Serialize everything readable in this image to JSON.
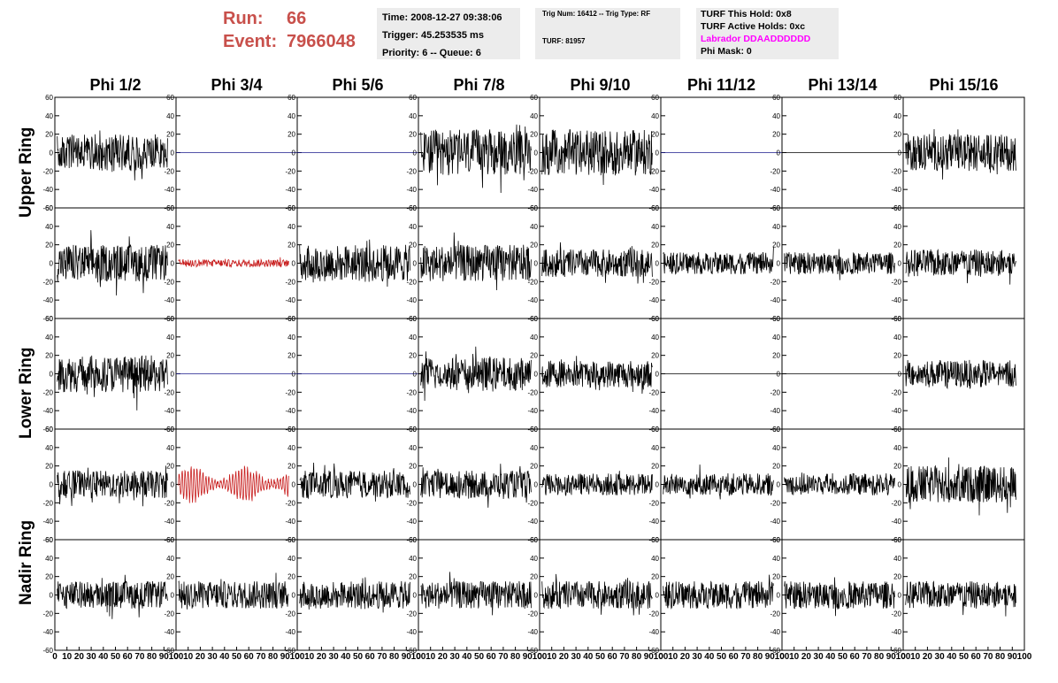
{
  "header": {
    "run_label": "Run:",
    "run_value": "66",
    "event_label": "Event:",
    "event_value": "7966048"
  },
  "info_box_1": {
    "time": "Time: 2008-12-27 09:38:06",
    "trigger": "Trigger: 45.253535 ms",
    "priority": "Priority: 6 -- Queue: 6"
  },
  "info_box_2": {
    "trig": "Trig Num: 16412 -- Trig Type: RF",
    "turf": "TURF: 81957"
  },
  "info_box_3": {
    "this_hold": "TURF This Hold: 0x8",
    "active_holds": "TURF Active Holds: 0xc",
    "labrador": "Labrador DDAADDDDDD",
    "phi_mask": "Phi Mask: 0"
  },
  "colors": {
    "run_text": "#c8504b",
    "labrador_text": "#ff00ff",
    "box_bg": "#ececec",
    "trace_normal": "#000000",
    "trace_masked": "#c81e1e",
    "trace_flat": "#1a1a8c"
  },
  "columns": [
    "Phi 1/2",
    "Phi 3/4",
    "Phi 5/6",
    "Phi 7/8",
    "Phi 9/10",
    "Phi 11/12",
    "Phi 13/14",
    "Phi 15/16"
  ],
  "rings": [
    "Upper Ring",
    "Lower Ring",
    "Nadir Ring"
  ],
  "y_ticks": [
    "60",
    "40",
    "20",
    "0",
    "-20",
    "-40",
    "-60"
  ],
  "x_ticks": [
    "0",
    "10",
    "20",
    "30",
    "40",
    "50",
    "60",
    "70",
    "80",
    "90",
    "100"
  ],
  "chart_data": {
    "type": "line",
    "x_range": [
      0,
      100
    ],
    "y_range": [
      -60,
      60
    ],
    "grid": false,
    "rows": 5,
    "cols": 8,
    "panel_style": [
      [
        "noise",
        "flat",
        "flat",
        "noise",
        "noise",
        "flat",
        "flat-black",
        "noise"
      ],
      [
        "noise",
        "small-red",
        "noise",
        "noise",
        "noise",
        "noise",
        "noise",
        "noise"
      ],
      [
        "noise",
        "flat",
        "flat",
        "noise",
        "noise",
        "flat-black",
        "flat-black",
        "noise"
      ],
      [
        "noise",
        "large-red",
        "noise",
        "noise",
        "noise",
        "noise",
        "noise",
        "noise"
      ],
      [
        "noise",
        "noise",
        "noise",
        "noise",
        "noise",
        "noise",
        "noise",
        "noise"
      ]
    ],
    "panel_amplitude": [
      [
        20,
        0,
        0,
        25,
        25,
        0,
        0,
        20
      ],
      [
        20,
        4,
        20,
        20,
        15,
        12,
        12,
        15
      ],
      [
        20,
        0,
        0,
        18,
        15,
        0,
        0,
        15
      ],
      [
        15,
        18,
        15,
        15,
        12,
        12,
        12,
        20
      ],
      [
        15,
        15,
        15,
        15,
        15,
        15,
        15,
        15
      ]
    ]
  }
}
